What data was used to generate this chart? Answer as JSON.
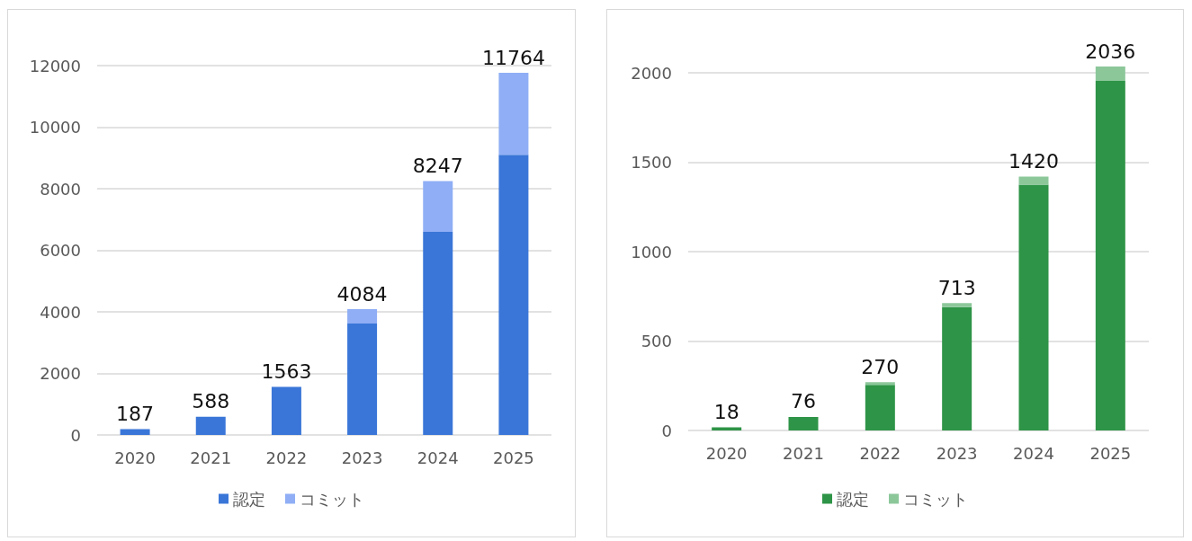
{
  "chart_data": [
    {
      "type": "bar",
      "stacked": true,
      "categories": [
        "2020",
        "2021",
        "2022",
        "2023",
        "2024",
        "2025"
      ],
      "series": [
        {
          "name": "認定",
          "color": "#3a76d8",
          "values": [
            187,
            588,
            1563,
            3620,
            6600,
            9100
          ]
        },
        {
          "name": "コミット",
          "color": "#8faef5",
          "values": [
            0,
            0,
            0,
            464,
            1647,
            2664
          ]
        }
      ],
      "totals": [
        "187",
        "588",
        "1563",
        "4084",
        "8247",
        "11764"
      ],
      "ylim": [
        0,
        12000
      ],
      "yticks": [
        0,
        2000,
        4000,
        6000,
        8000,
        10000,
        12000
      ],
      "grid": "y",
      "legend": "bottom"
    },
    {
      "type": "bar",
      "stacked": true,
      "categories": [
        "2020",
        "2021",
        "2022",
        "2023",
        "2024",
        "2025"
      ],
      "series": [
        {
          "name": "認定",
          "color": "#2e9447",
          "values": [
            18,
            76,
            255,
            690,
            1375,
            1955
          ]
        },
        {
          "name": "コミット",
          "color": "#8cc79a",
          "values": [
            0,
            0,
            15,
            23,
            45,
            81
          ]
        }
      ],
      "totals": [
        "18",
        "76",
        "270",
        "713",
        "1420",
        "2036"
      ],
      "ylim": [
        0,
        2036
      ],
      "yticks": [
        0,
        500,
        1000,
        1500,
        2000
      ],
      "grid": "y",
      "legend": "bottom"
    }
  ]
}
